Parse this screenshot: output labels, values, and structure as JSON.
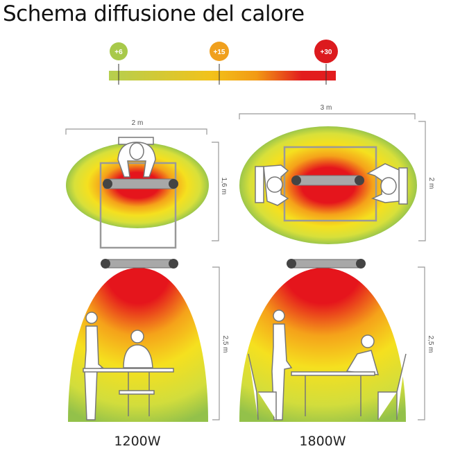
{
  "title": "Schema diffusione del calore",
  "scale": {
    "markers": [
      {
        "label": "+6",
        "color": "#a8c94a"
      },
      {
        "label": "+15",
        "color": "#f0a01e"
      },
      {
        "label": "+30",
        "color": "#dc1a1e"
      }
    ],
    "gradient_colors": [
      "#b5cf4f",
      "#f2c21a",
      "#f29a14",
      "#e21c1e"
    ]
  },
  "models": [
    {
      "power": "1200W",
      "top_width": "2 m",
      "top_depth": "1,6 m",
      "height": "2,5 m"
    },
    {
      "power": "1800W",
      "top_width": "3 m",
      "top_depth": "2 m",
      "height": "2,5 m"
    }
  ]
}
